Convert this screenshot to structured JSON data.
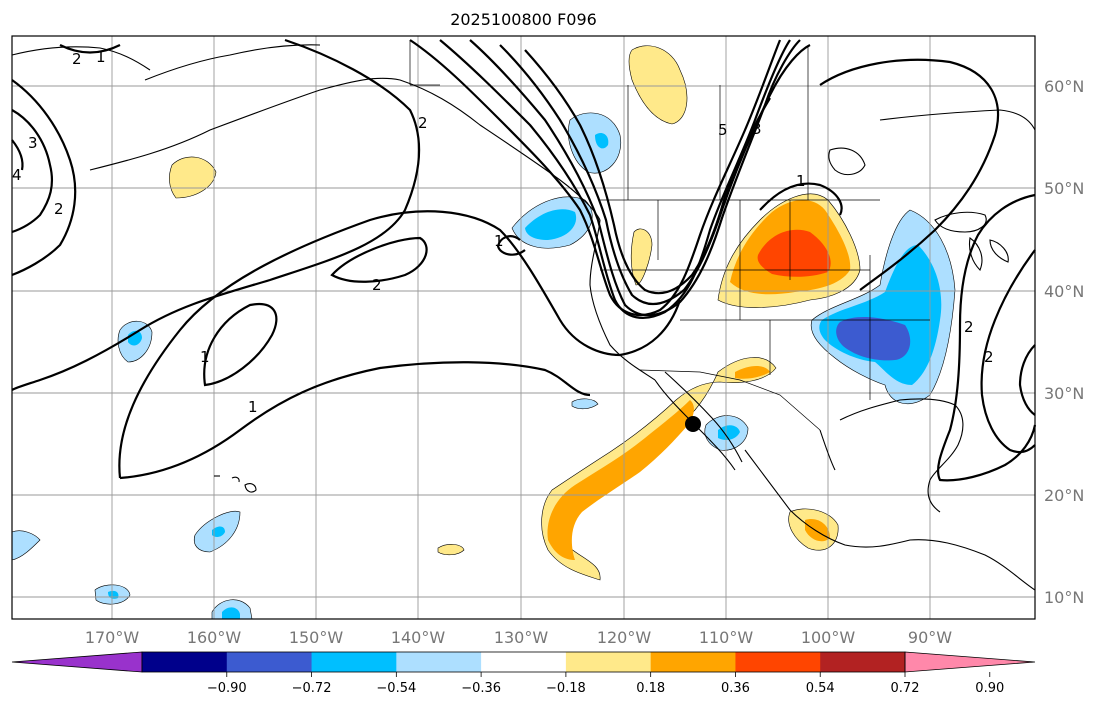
{
  "title": "2025100800 F096",
  "map": {
    "lon_labels": [
      "170°W",
      "160°W",
      "150°W",
      "140°W",
      "130°W",
      "120°W",
      "110°W",
      "100°W",
      "90°W"
    ],
    "lat_labels": [
      "60°N",
      "50°N",
      "40°N",
      "30°N",
      "20°N",
      "10°N"
    ],
    "marker": {
      "lon": -113.2,
      "lat": 27.0
    },
    "contour_labels": [
      "2",
      "1",
      "3",
      "4",
      "2",
      "2",
      "1",
      "1",
      "2",
      "1",
      "5",
      "3",
      "1",
      "2",
      "2"
    ]
  },
  "colorbar": {
    "ticks": [
      "−0.90",
      "−0.72",
      "−0.54",
      "−0.36",
      "−0.18",
      "0.18",
      "0.36",
      "0.54",
      "0.72",
      "0.90"
    ],
    "colors": [
      "#9932CC",
      "#00008B",
      "#3C5BD0",
      "#00BFFF",
      "#ADDFFF",
      "#FFFFFF",
      "#FFE98A",
      "#FFA500",
      "#FF4500",
      "#B22222",
      "#FF88AA"
    ]
  }
}
